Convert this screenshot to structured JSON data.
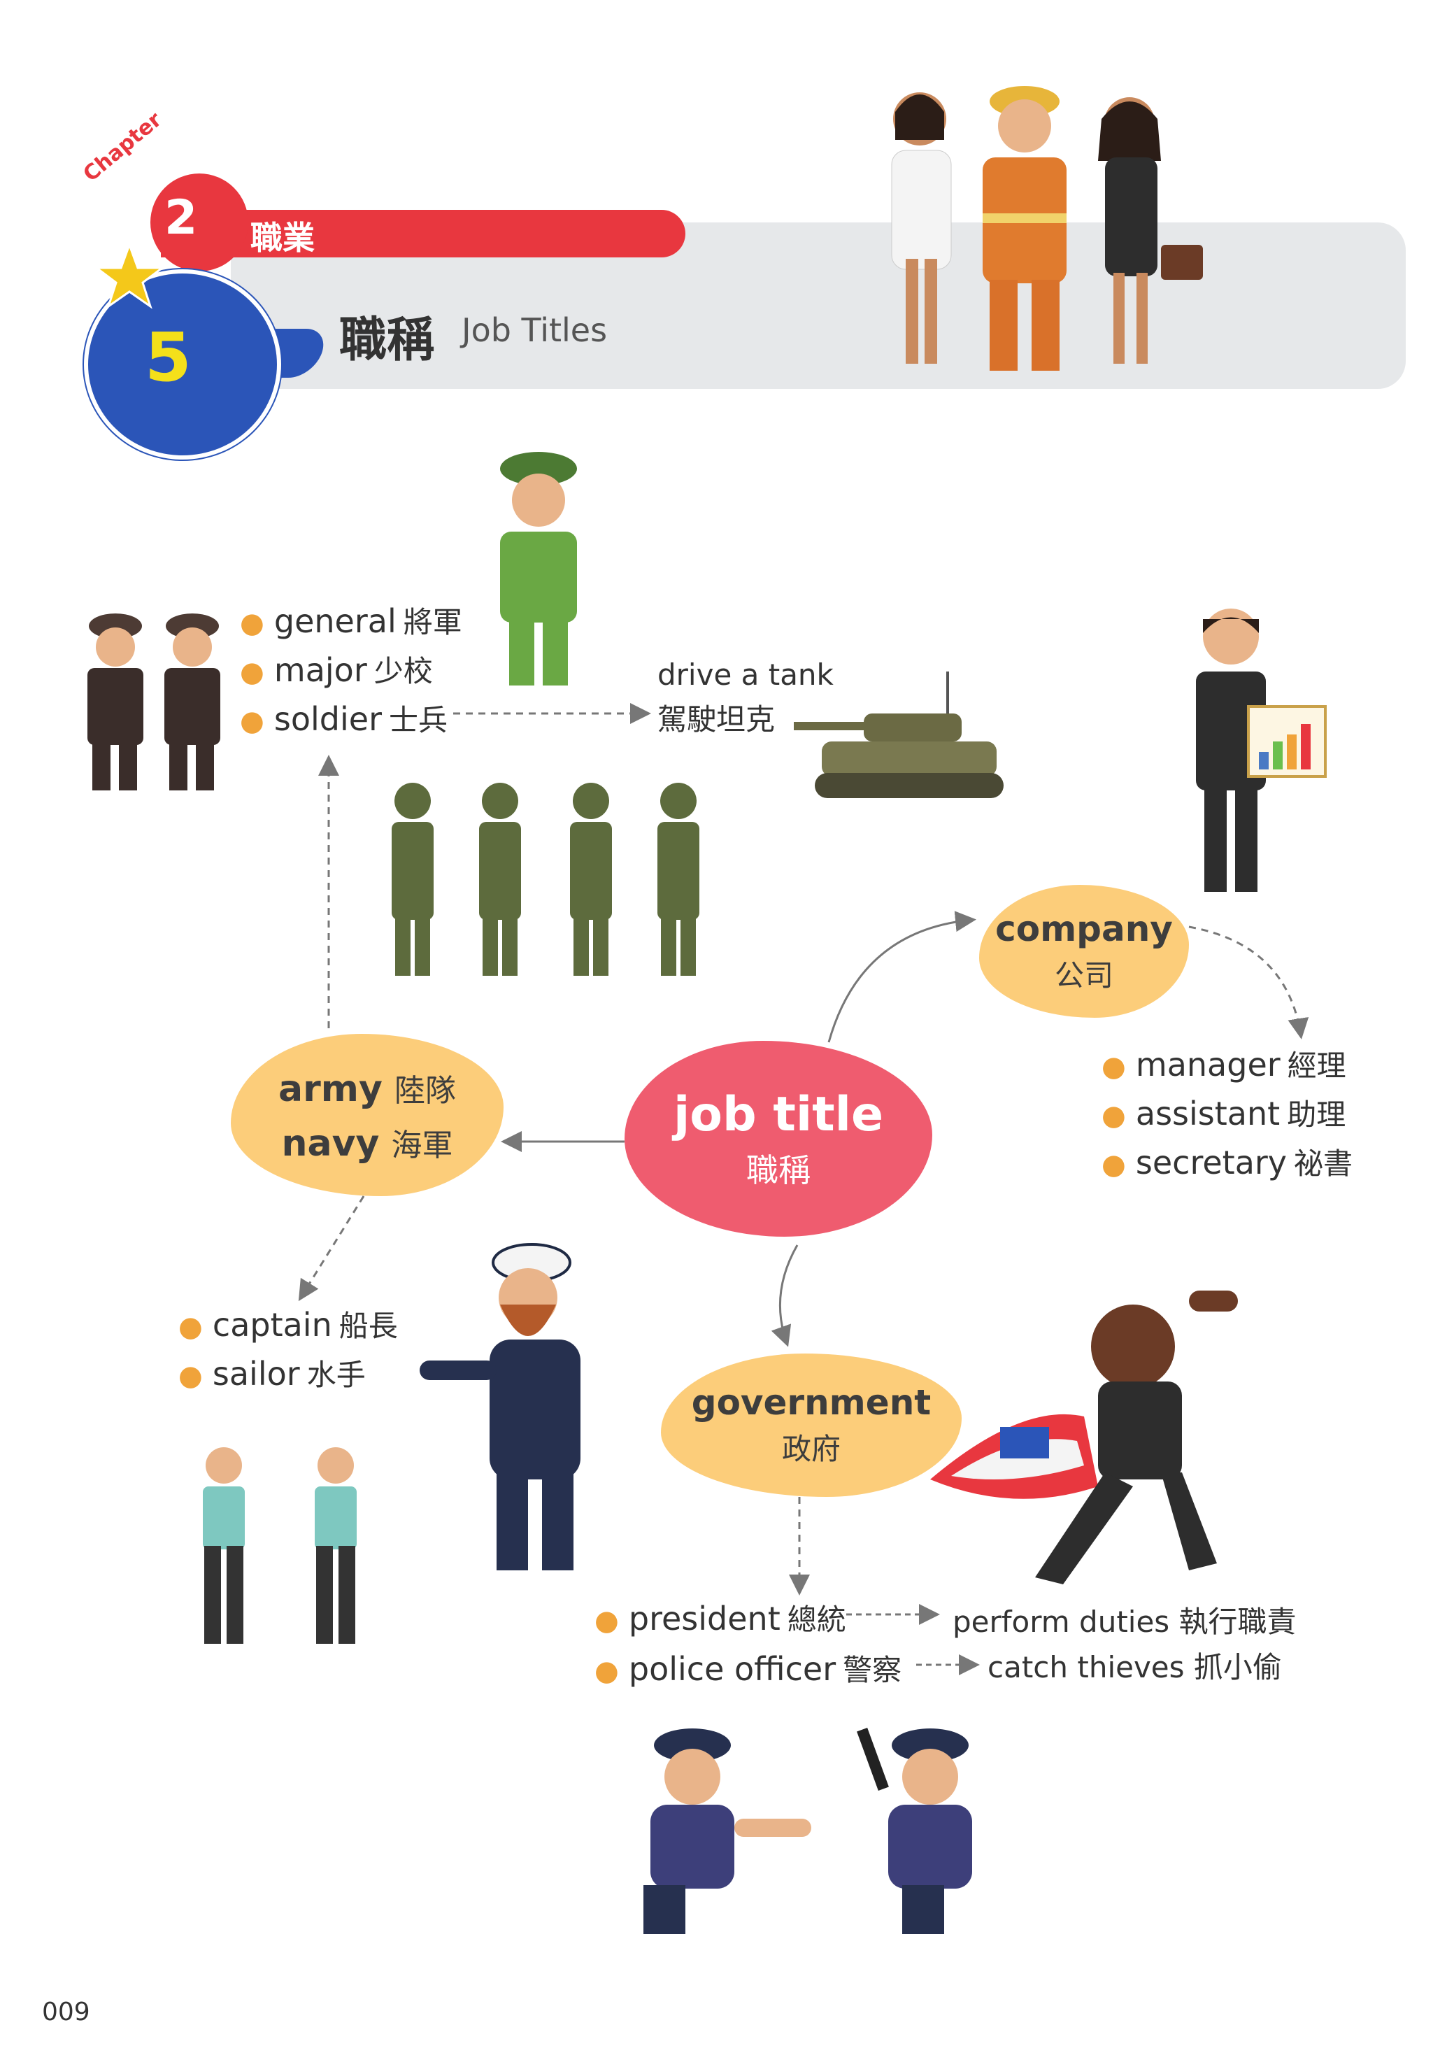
{
  "header": {
    "chapter_word": "Chapter",
    "chapter_number": "2",
    "chapter_name": "職業",
    "lesson_number": "5",
    "lesson_title_zh": "職稱",
    "lesson_title_en": "Job Titles"
  },
  "center": {
    "en": "job title",
    "zh": "職稱"
  },
  "army": {
    "line1_en": "army",
    "line1_zh": "陸隊",
    "line2_en": "navy",
    "line2_zh": "海軍"
  },
  "company": {
    "en": "company",
    "zh": "公司"
  },
  "government": {
    "en": "government",
    "zh": "政府"
  },
  "military_ranks": [
    {
      "en": "general",
      "zh": "將軍"
    },
    {
      "en": "major",
      "zh": "少校"
    },
    {
      "en": "soldier",
      "zh": "士兵"
    }
  ],
  "tank_phrase": {
    "en": "drive a tank",
    "zh": "駕駛坦克"
  },
  "company_jobs": [
    {
      "en": "manager",
      "zh": "經理"
    },
    {
      "en": "assistant",
      "zh": "助理"
    },
    {
      "en": "secretary",
      "zh": "祕書"
    }
  ],
  "navy_jobs": [
    {
      "en": "captain",
      "zh": "船長"
    },
    {
      "en": "sailor",
      "zh": "水手"
    }
  ],
  "government_jobs": [
    {
      "en": "president",
      "zh": "總統",
      "phrase": "perform duties 執行職責"
    },
    {
      "en": "police officer",
      "zh": "警察",
      "phrase": "catch thieves 抓小偷"
    }
  ],
  "page_number": "009",
  "colors": {
    "red": "#e8373f",
    "blue": "#2b55b8",
    "yellow": "#f4e01a",
    "bubble": "#fccd7a",
    "center": "#ef5c6f",
    "bullet": "#f0a33a"
  }
}
